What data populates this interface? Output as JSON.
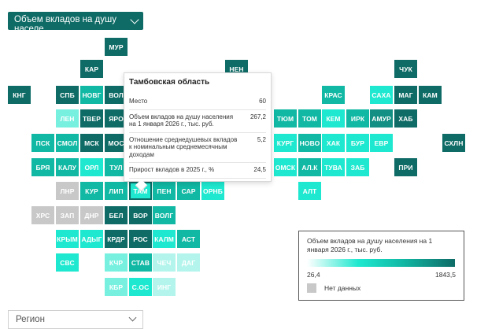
{
  "indicator_select": {
    "label": "Объем вкладов на душу населе..."
  },
  "region_select": {
    "placeholder": "Регион"
  },
  "palette": {
    "d": "#0e6b66",
    "m": "#138f83",
    "t": "#11b8a4",
    "b": "#1ee8cf",
    "l": "#78f0e0",
    "p": "#b3f5ec",
    "g": "#c8c8c8",
    "w": "#ffffff",
    "s": "#1ee8cf"
  },
  "tiles": [
    {
      "label": "МУР",
      "c": "d"
    },
    {
      "label": "КАР",
      "c": "d"
    },
    {
      "label": "НЕН",
      "c": "d"
    },
    {
      "label": "ЧУК",
      "c": "d"
    },
    {
      "label": "КНГ",
      "c": "d"
    },
    {
      "label": "СПБ",
      "c": "d"
    },
    {
      "label": "НОВГ",
      "c": "t"
    },
    {
      "label": "ВОЛ",
      "c": "d"
    },
    {
      "label": "КРАС",
      "c": "t"
    },
    {
      "label": "САХА",
      "c": "b"
    },
    {
      "label": "МАГ",
      "c": "d"
    },
    {
      "label": "КАМ",
      "c": "d"
    },
    {
      "label": "ЛЕН",
      "c": "l"
    },
    {
      "label": "ТВЕР",
      "c": "d"
    },
    {
      "label": "ЯРО",
      "c": "d"
    },
    {
      "label": "ТЮМ",
      "c": "t"
    },
    {
      "label": "ТОМ",
      "c": "t"
    },
    {
      "label": "КЕМ",
      "c": "b"
    },
    {
      "label": "ИРК",
      "c": "t"
    },
    {
      "label": "АМУР",
      "c": "m"
    },
    {
      "label": "ХАБ",
      "c": "d"
    },
    {
      "label": "ПСК",
      "c": "t"
    },
    {
      "label": "СМОЛ",
      "c": "t"
    },
    {
      "label": "МСК",
      "c": "d"
    },
    {
      "label": "МОС",
      "c": "d"
    },
    {
      "label": "КУРГ",
      "c": "b"
    },
    {
      "label": "НОВО",
      "c": "t"
    },
    {
      "label": "ХАК",
      "c": "b"
    },
    {
      "label": "БУР",
      "c": "b"
    },
    {
      "label": "ЕВР",
      "c": "b"
    },
    {
      "label": "СХЛН",
      "c": "d"
    },
    {
      "label": "БРЯ",
      "c": "t"
    },
    {
      "label": "КАЛУ",
      "c": "t"
    },
    {
      "label": "ОРЛ",
      "c": "b"
    },
    {
      "label": "ТУЛ",
      "c": "t"
    },
    {
      "label": "ОМСК",
      "c": "b"
    },
    {
      "label": "АЛ.К",
      "c": "t"
    },
    {
      "label": "ТУВА",
      "c": "b"
    },
    {
      "label": "ЗАБ",
      "c": "b"
    },
    {
      "label": "ПРИ",
      "c": "d"
    },
    {
      "label": "ЛНР",
      "c": "g"
    },
    {
      "label": "КУР",
      "c": "t"
    },
    {
      "label": "ЛИП",
      "c": "t"
    },
    {
      "label": "ТАМ",
      "c": "s"
    },
    {
      "label": "ПЕН",
      "c": "t"
    },
    {
      "label": "САР",
      "c": "t"
    },
    {
      "label": "ОРНБ",
      "c": "b"
    },
    {
      "label": "АЛТ",
      "c": "b"
    },
    {
      "label": "ХРС",
      "c": "g"
    },
    {
      "label": "ЗАП",
      "c": "g"
    },
    {
      "label": "ДНР",
      "c": "g"
    },
    {
      "label": "БЕЛ",
      "c": "d"
    },
    {
      "label": "ВОР",
      "c": "d"
    },
    {
      "label": "ВОЛГ",
      "c": "t"
    },
    {
      "label": "КРЫМ",
      "c": "b"
    },
    {
      "label": "АДЫГ",
      "c": "b"
    },
    {
      "label": "КРДР",
      "c": "d"
    },
    {
      "label": "РОС",
      "c": "d"
    },
    {
      "label": "КАЛМ",
      "c": "b"
    },
    {
      "label": "АСТ",
      "c": "t"
    },
    {
      "label": "СВС",
      "c": "b"
    },
    {
      "label": "КЧР",
      "c": "l"
    },
    {
      "label": "СТАВ",
      "c": "t"
    },
    {
      "label": "ЧЕЧ",
      "c": "p"
    },
    {
      "label": "ДАГ",
      "c": "p"
    },
    {
      "label": "КБР",
      "c": "l"
    },
    {
      "label": "С.ОС",
      "c": "b"
    },
    {
      "label": "ИНГ",
      "c": "p"
    }
  ],
  "tooltip": {
    "title": "Тамбовская область",
    "rows": [
      {
        "label": "Место",
        "value": "60"
      },
      {
        "label": "Объем вкладов на душу населения на 1 января 2026 г., тыс. руб.",
        "value": "267,2"
      },
      {
        "label": "Отношение среднедушевых вкладов к номинальным среднемесячным доходам",
        "value": "5,2"
      },
      {
        "label": "Прирост вкладов в 2025 г., %",
        "value": "24,5"
      }
    ]
  },
  "legend": {
    "title": "Объем вкладов на душу населения на 1 января 2026 г., тыс. руб.",
    "min": "26,4",
    "max": "1843,5",
    "no_data": "Нет данных"
  }
}
